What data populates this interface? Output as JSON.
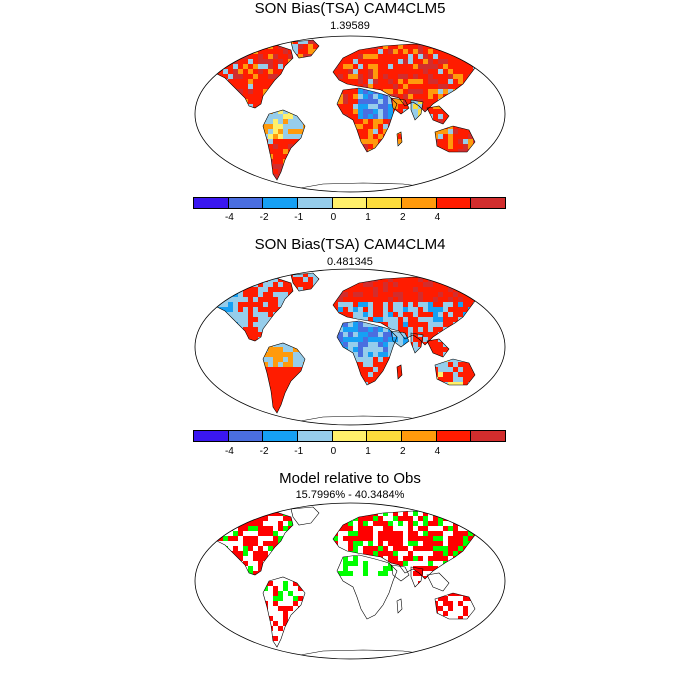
{
  "panels": [
    {
      "title": "SON Bias(TSA) CAM4CLM5",
      "subtitle": "1.39589",
      "palette": "bias-wet",
      "colorbar": {
        "colors": [
          "#3a17f0",
          "#4a6ee0",
          "#16a0f4",
          "#96cdeb",
          "#fff06b",
          "#fcdc3c",
          "#ff9a0c",
          "#ff1c00",
          "#d22d2d"
        ],
        "ticks": [
          "-4",
          "-2",
          "-1",
          "0",
          "1",
          "2",
          "4"
        ]
      }
    },
    {
      "title": "SON Bias(TSA) CAM4CLM4",
      "subtitle": "0.481345",
      "palette": "bias-mixed",
      "colorbar": {
        "colors": [
          "#3a17f0",
          "#4a6ee0",
          "#16a0f4",
          "#96cdeb",
          "#fff06b",
          "#fcdc3c",
          "#ff9a0c",
          "#ff1c00",
          "#d22d2d"
        ],
        "ticks": [
          "-4",
          "-2",
          "-1",
          "0",
          "1",
          "2",
          "4"
        ]
      }
    },
    {
      "title": "Model relative to Obs",
      "subtitle": "15.7996% - 40.3484%",
      "palette": "relative",
      "colors": {
        "red": "#ff0000",
        "green": "#00ff00"
      }
    }
  ]
}
